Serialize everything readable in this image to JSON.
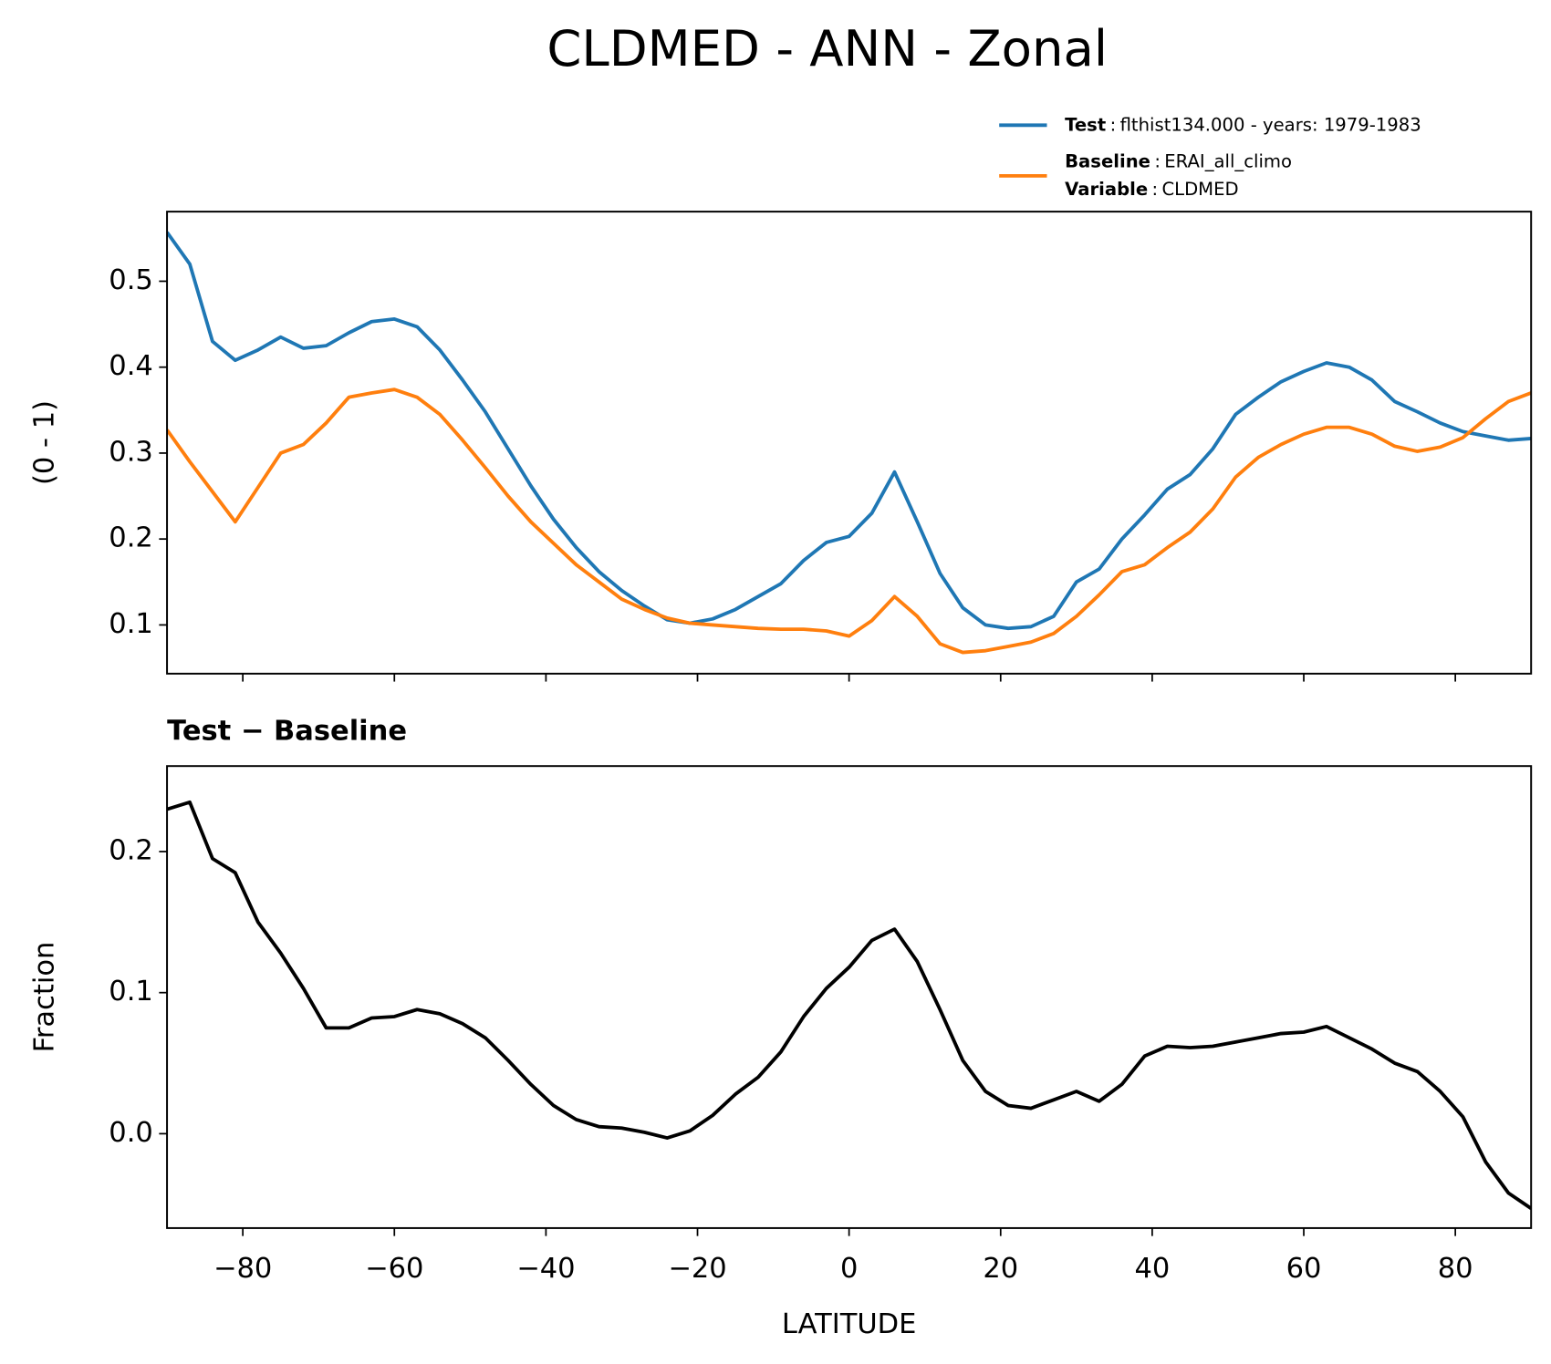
{
  "title": "CLDMED - ANN - Zonal",
  "chart_data": [
    {
      "type": "line",
      "ylabel": "(0 - 1)",
      "x": [
        -90,
        -87,
        -84,
        -81,
        -78,
        -75,
        -72,
        -69,
        -66,
        -63,
        -60,
        -57,
        -54,
        -51,
        -48,
        -45,
        -42,
        -39,
        -36,
        -33,
        -30,
        -27,
        -24,
        -21,
        -18,
        -15,
        -12,
        -9,
        -6,
        -3,
        0,
        3,
        6,
        9,
        12,
        15,
        18,
        21,
        24,
        27,
        30,
        33,
        36,
        39,
        42,
        45,
        48,
        51,
        54,
        57,
        60,
        63,
        66,
        69,
        72,
        75,
        78,
        81,
        84,
        87,
        90
      ],
      "series": [
        {
          "name": "Test",
          "legend_value": "flthist134.000 - years: 1979-1983",
          "color": "#1f77b4",
          "values": [
            0.557,
            0.52,
            0.43,
            0.408,
            0.42,
            0.435,
            0.422,
            0.425,
            0.44,
            0.453,
            0.456,
            0.447,
            0.42,
            0.385,
            0.348,
            0.305,
            0.262,
            0.223,
            0.19,
            0.162,
            0.14,
            0.122,
            0.106,
            0.102,
            0.107,
            0.118,
            0.133,
            0.148,
            0.175,
            0.196,
            0.203,
            0.23,
            0.278,
            0.22,
            0.16,
            0.12,
            0.1,
            0.096,
            0.098,
            0.11,
            0.15,
            0.165,
            0.2,
            0.228,
            0.258,
            0.275,
            0.305,
            0.345,
            0.365,
            0.383,
            0.395,
            0.405,
            0.4,
            0.385,
            0.36,
            0.348,
            0.335,
            0.325,
            0.32,
            0.315,
            0.317
          ]
        },
        {
          "name": "Baseline",
          "legend_value": "ERAI_all_climo",
          "legend_extra_key": "Variable",
          "legend_extra_value": "CLDMED",
          "color": "#ff7f0e",
          "values": [
            0.327,
            0.29,
            0.255,
            0.22,
            0.26,
            0.3,
            0.31,
            0.335,
            0.365,
            0.37,
            0.374,
            0.365,
            0.345,
            0.315,
            0.283,
            0.25,
            0.22,
            0.195,
            0.17,
            0.15,
            0.13,
            0.118,
            0.108,
            0.102,
            0.1,
            0.098,
            0.096,
            0.095,
            0.095,
            0.093,
            0.087,
            0.105,
            0.133,
            0.11,
            0.078,
            0.068,
            0.07,
            0.075,
            0.08,
            0.09,
            0.11,
            0.135,
            0.162,
            0.17,
            0.19,
            0.208,
            0.235,
            0.272,
            0.295,
            0.31,
            0.322,
            0.33,
            0.33,
            0.322,
            0.308,
            0.302,
            0.307,
            0.318,
            0.34,
            0.36,
            0.37
          ]
        }
      ],
      "legend_separator": ":",
      "xlim": [
        -90,
        90
      ],
      "ylim": [
        0.0433,
        0.581
      ],
      "xticks": [
        -80,
        -60,
        -40,
        -20,
        0,
        20,
        40,
        60,
        80
      ],
      "xticklabels": false,
      "yticks": [
        0.1,
        0.2,
        0.3,
        0.4,
        0.5
      ]
    },
    {
      "type": "line",
      "title": "Test − Baseline",
      "ylabel": "Fraction",
      "xlabel": "LATITUDE",
      "x": [
        -90,
        -87,
        -84,
        -81,
        -78,
        -75,
        -72,
        -69,
        -66,
        -63,
        -60,
        -57,
        -54,
        -51,
        -48,
        -45,
        -42,
        -39,
        -36,
        -33,
        -30,
        -27,
        -24,
        -21,
        -18,
        -15,
        -12,
        -9,
        -6,
        -3,
        0,
        3,
        6,
        9,
        12,
        15,
        18,
        21,
        24,
        27,
        30,
        33,
        36,
        39,
        42,
        45,
        48,
        51,
        54,
        57,
        60,
        63,
        66,
        69,
        72,
        75,
        78,
        81,
        84,
        87,
        90
      ],
      "series": [
        {
          "color": "#000000",
          "values": [
            0.23,
            0.235,
            0.195,
            0.185,
            0.15,
            0.128,
            0.103,
            0.075,
            0.075,
            0.082,
            0.083,
            0.088,
            0.085,
            0.078,
            0.068,
            0.052,
            0.035,
            0.02,
            0.01,
            0.005,
            0.004,
            0.001,
            -0.003,
            0.002,
            0.013,
            0.028,
            0.04,
            0.058,
            0.083,
            0.103,
            0.118,
            0.137,
            0.145,
            0.122,
            0.088,
            0.052,
            0.03,
            0.02,
            0.018,
            0.024,
            0.03,
            0.023,
            0.035,
            0.055,
            0.062,
            0.061,
            0.062,
            0.065,
            0.068,
            0.071,
            0.072,
            0.076,
            0.068,
            0.06,
            0.05,
            0.044,
            0.03,
            0.012,
            -0.02,
            -0.042,
            -0.053
          ]
        }
      ],
      "xlim": [
        -90,
        90
      ],
      "ylim": [
        -0.0669,
        0.2606
      ],
      "xticks": [
        {
          "value": -80,
          "label": "−80"
        },
        {
          "value": -60,
          "label": "−60"
        },
        {
          "value": -40,
          "label": "−40"
        },
        {
          "value": -20,
          "label": "−20"
        },
        0,
        20,
        40,
        60,
        80
      ],
      "xticklabels": true,
      "yticks": [
        {
          "value": 0,
          "label": "0.0"
        },
        0.1,
        0.2
      ]
    }
  ]
}
